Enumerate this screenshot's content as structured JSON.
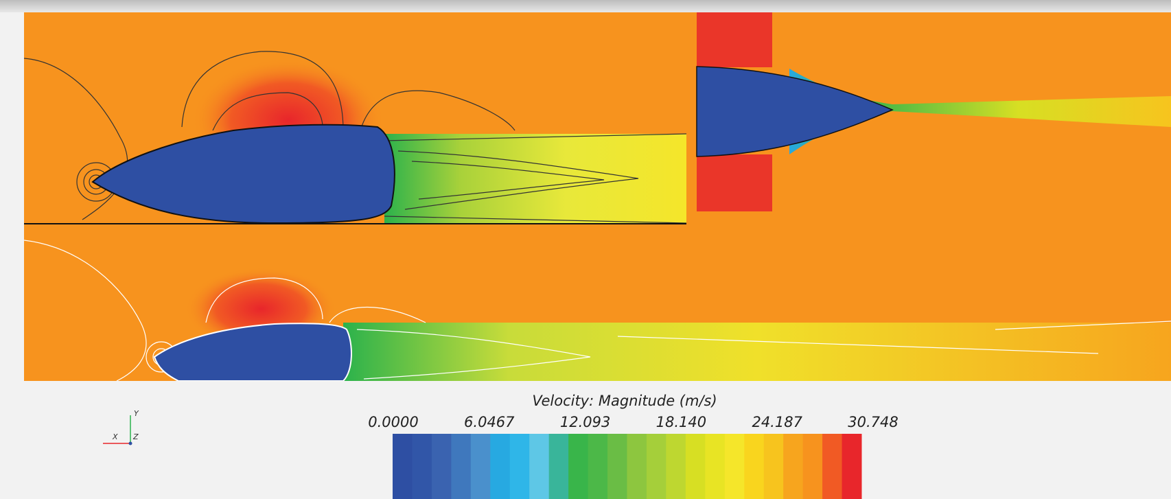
{
  "colorbar": {
    "title": "Velocity: Magnitude (m/s)",
    "labels": [
      "0.0000",
      "6.0467",
      "12.093",
      "18.140",
      "24.187",
      "30.748"
    ]
  },
  "axes_triad": {
    "y": "Y",
    "x": "X",
    "z": "Z"
  }
}
